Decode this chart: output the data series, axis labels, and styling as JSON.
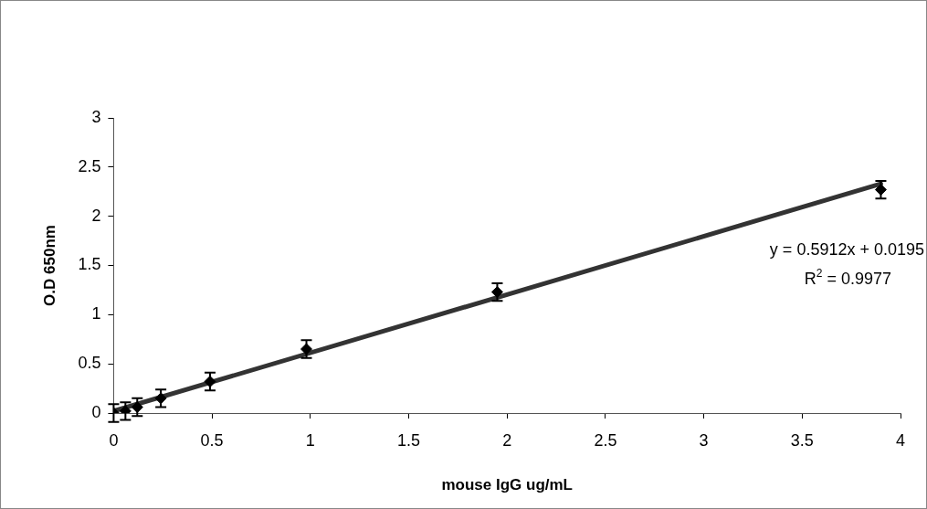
{
  "chart_data": {
    "type": "scatter",
    "xlabel": "mouse IgG ug/mL",
    "ylabel": "O.D 650nm",
    "x": [
      0,
      0.06,
      0.12,
      0.24,
      0.49,
      0.98,
      1.95,
      3.9
    ],
    "series": [
      {
        "color": "#000000",
        "values": [
          0,
          0.02,
          0.06,
          0.15,
          0.32,
          0.65,
          1.23,
          2.27
        ],
        "errors": [
          0.09,
          0.09,
          0.09,
          0.09,
          0.09,
          0.09,
          0.09,
          0.09
        ]
      },
      {
        "type": "line",
        "marker": "none",
        "color": "#333333",
        "x": [
          0,
          3.9
        ],
        "values": [
          0.02,
          2.33
        ]
      }
    ],
    "xlim": [
      0,
      4
    ],
    "xticks": [
      0,
      0.5,
      1,
      1.5,
      2,
      2.5,
      3,
      3.5,
      4
    ],
    "ylim": [
      0,
      3
    ],
    "yticks": [
      0,
      0.5,
      1,
      1.5,
      2,
      2.5,
      3
    ],
    "grid": false,
    "legend": false,
    "marker": "diamond",
    "annotations": [
      "y = 0.5912x + 0.0195",
      "R$^{2}$ = 0.9977"
    ]
  }
}
